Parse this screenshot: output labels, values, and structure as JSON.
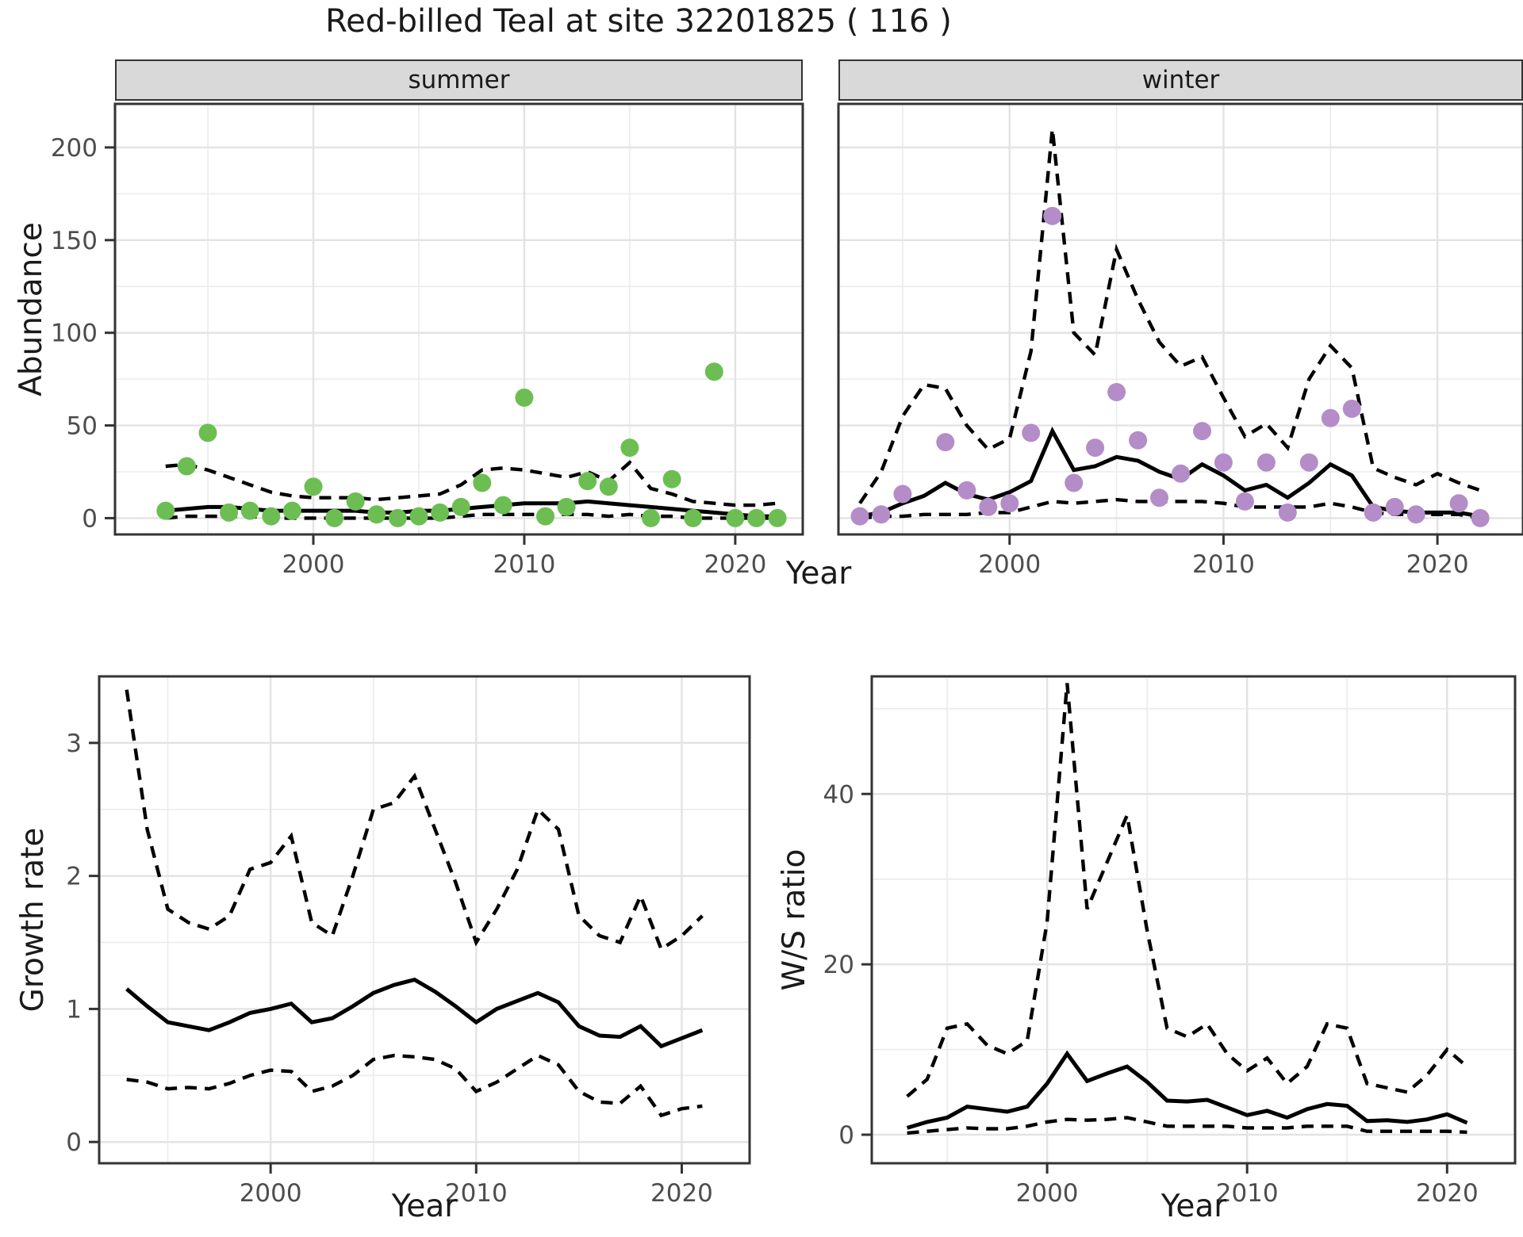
{
  "title": "Red-billed Teal at site 32201825 ( 116 )",
  "labels": {
    "abundance_axis": "Abundance",
    "year_axis": "Year",
    "growth_axis": "Growth rate",
    "ws_axis": "W/S ratio"
  },
  "colors": {
    "summer_point": "#6CBE53",
    "winter_point": "#B48CC8",
    "line": "#000000",
    "grid_major": "#e3e3e3",
    "grid_minor": "#ebebeb",
    "panel_border": "#333333",
    "tick_text": "#4d4d4d",
    "strip_bg": "#d9d9d9"
  },
  "chart_data": [
    {
      "id": "summer",
      "type": "line+scatter",
      "facet_label": "summer",
      "xlabel": "Year",
      "ylabel": "Abundance",
      "x": [
        1993,
        1994,
        1995,
        1996,
        1997,
        1998,
        1999,
        2000,
        2001,
        2002,
        2003,
        2004,
        2005,
        2006,
        2007,
        2008,
        2009,
        2010,
        2011,
        2012,
        2013,
        2014,
        2015,
        2016,
        2017,
        2018,
        2019,
        2020,
        2021,
        2022
      ],
      "points": [
        4,
        28,
        46,
        3,
        4,
        1,
        4,
        17,
        0,
        9,
        2,
        0,
        1,
        3,
        6,
        19,
        7,
        65,
        1,
        6,
        20,
        17,
        38,
        0,
        21,
        0,
        79,
        0,
        0,
        0
      ],
      "median": [
        4,
        5,
        6,
        6,
        5,
        4,
        4,
        4,
        4,
        4,
        3,
        3,
        4,
        4,
        5,
        6,
        7,
        8,
        8,
        8,
        9,
        8,
        7,
        6,
        5,
        4,
        3,
        2,
        1,
        1
      ],
      "upper": [
        28,
        29,
        26,
        22,
        18,
        14,
        12,
        11,
        11,
        11,
        10,
        11,
        12,
        13,
        18,
        26,
        27,
        26,
        24,
        22,
        25,
        20,
        30,
        16,
        13,
        9,
        8,
        7,
        7,
        8
      ],
      "lower": [
        0,
        1,
        1,
        1,
        1,
        0,
        0,
        0,
        0,
        0,
        0,
        0,
        0,
        0,
        1,
        2,
        2,
        2,
        2,
        2,
        2,
        1,
        2,
        1,
        1,
        0,
        0,
        0,
        0,
        0
      ],
      "xticks": [
        2000,
        2010,
        2020
      ],
      "xminor": [
        1995,
        2005,
        2015
      ],
      "yticks": [
        0,
        50,
        100,
        150,
        200
      ],
      "yminor": [
        25,
        75,
        125,
        175
      ],
      "xlim": [
        1990.6,
        2023.2
      ],
      "ylim": [
        -8.8,
        223.5
      ],
      "show_ylabels": true
    },
    {
      "id": "winter",
      "type": "line+scatter",
      "facet_label": "winter",
      "xlabel": "Year",
      "ylabel": "Abundance",
      "x": [
        1993,
        1994,
        1995,
        1996,
        1997,
        1998,
        1999,
        2000,
        2001,
        2002,
        2003,
        2004,
        2005,
        2006,
        2007,
        2008,
        2009,
        2010,
        2011,
        2012,
        2013,
        2014,
        2015,
        2016,
        2017,
        2018,
        2019,
        2020,
        2021,
        2022
      ],
      "points": [
        1,
        2,
        13,
        null,
        41,
        15,
        6,
        8,
        46,
        163,
        19,
        38,
        68,
        42,
        11,
        24,
        47,
        30,
        9,
        30,
        3,
        30,
        54,
        59,
        3,
        6,
        2,
        null,
        8,
        0
      ],
      "median": [
        1,
        3,
        8,
        12,
        19,
        13,
        10,
        14,
        20,
        47,
        26,
        28,
        33,
        31,
        25,
        21,
        29,
        23,
        15,
        18,
        11,
        19,
        29,
        23,
        6,
        4,
        3,
        3,
        3,
        1
      ],
      "upper": [
        8,
        25,
        55,
        72,
        70,
        50,
        37,
        43,
        90,
        210,
        100,
        88,
        145,
        118,
        95,
        82,
        87,
        65,
        44,
        51,
        38,
        75,
        93,
        81,
        27,
        22,
        18,
        24,
        19,
        15
      ],
      "lower": [
        0,
        1,
        1,
        2,
        2,
        2,
        3,
        3,
        6,
        9,
        8,
        9,
        10,
        9,
        9,
        9,
        9,
        8,
        6,
        6,
        6,
        6,
        8,
        6,
        3,
        2,
        2,
        2,
        2,
        0
      ],
      "xticks": [
        2000,
        2010,
        2020
      ],
      "xminor": [
        1995,
        2005,
        2015
      ],
      "yticks": [
        0,
        50,
        100,
        150,
        200
      ],
      "yminor": [
        25,
        75,
        125,
        175
      ],
      "xlim": [
        1992.0,
        2024.0
      ],
      "ylim": [
        -8.8,
        223.5
      ],
      "show_ylabels": false
    },
    {
      "id": "growth",
      "type": "line",
      "xlabel": "Year",
      "ylabel": "Growth rate",
      "x": [
        1993,
        1994,
        1995,
        1996,
        1997,
        1998,
        1999,
        2000,
        2001,
        2002,
        2003,
        2004,
        2005,
        2006,
        2007,
        2008,
        2009,
        2010,
        2011,
        2012,
        2013,
        2014,
        2015,
        2016,
        2017,
        2018,
        2019,
        2020,
        2021
      ],
      "median": [
        1.15,
        1.02,
        0.9,
        0.87,
        0.84,
        0.9,
        0.97,
        1.0,
        1.04,
        0.9,
        0.93,
        1.02,
        1.12,
        1.18,
        1.22,
        1.13,
        1.02,
        0.9,
        1.0,
        1.06,
        1.12,
        1.05,
        0.87,
        0.8,
        0.79,
        0.87,
        0.72,
        0.78,
        0.84
      ],
      "upper": [
        3.4,
        2.35,
        1.75,
        1.65,
        1.6,
        1.7,
        2.05,
        2.1,
        2.3,
        1.65,
        1.55,
        2.0,
        2.5,
        2.55,
        2.75,
        2.35,
        1.95,
        1.5,
        1.75,
        2.05,
        2.5,
        2.35,
        1.7,
        1.55,
        1.5,
        1.85,
        1.45,
        1.55,
        1.7
      ],
      "lower": [
        0.47,
        0.45,
        0.4,
        0.41,
        0.4,
        0.44,
        0.5,
        0.54,
        0.53,
        0.38,
        0.42,
        0.5,
        0.62,
        0.65,
        0.64,
        0.62,
        0.55,
        0.38,
        0.45,
        0.55,
        0.65,
        0.58,
        0.38,
        0.3,
        0.29,
        0.42,
        0.2,
        0.25,
        0.27
      ],
      "xticks": [
        2000,
        2010,
        2020
      ],
      "xminor": [
        1995,
        2005,
        2015
      ],
      "yticks": [
        0,
        1,
        2,
        3
      ],
      "yminor": [
        0.5,
        1.5,
        2.5,
        3.5
      ],
      "xlim": [
        1991.66,
        2023.3
      ],
      "ylim": [
        -0.16,
        3.5
      ],
      "show_ylabels": true
    },
    {
      "id": "ws",
      "type": "line",
      "xlabel": "Year",
      "ylabel": "W/S ratio",
      "x": [
        1993,
        1994,
        1995,
        1996,
        1997,
        1998,
        1999,
        2000,
        2001,
        2002,
        2003,
        2004,
        2005,
        2006,
        2007,
        2008,
        2009,
        2010,
        2011,
        2012,
        2013,
        2014,
        2015,
        2016,
        2017,
        2018,
        2019,
        2020,
        2021
      ],
      "median": [
        0.8,
        1.5,
        2.0,
        3.3,
        3.0,
        2.7,
        3.3,
        6.0,
        9.5,
        6.3,
        7.2,
        8.0,
        6.2,
        4.0,
        3.9,
        4.1,
        3.2,
        2.3,
        2.8,
        2.0,
        3.0,
        3.6,
        3.4,
        1.6,
        1.7,
        1.5,
        1.8,
        2.4,
        1.4
      ],
      "upper": [
        4.5,
        6.5,
        12.5,
        13.0,
        10.5,
        9.5,
        11.0,
        25.0,
        53.0,
        26.5,
        32.0,
        37.5,
        24.0,
        12.5,
        11.5,
        13.0,
        9.5,
        7.5,
        9.0,
        6.0,
        8.0,
        13.0,
        12.5,
        6.0,
        5.5,
        5.0,
        7.0,
        10.0,
        8.0
      ],
      "lower": [
        0.2,
        0.4,
        0.6,
        0.8,
        0.7,
        0.7,
        1.0,
        1.5,
        1.8,
        1.7,
        1.8,
        2.0,
        1.5,
        1.0,
        1.0,
        1.0,
        1.0,
        0.8,
        0.8,
        0.8,
        1.0,
        1.0,
        1.0,
        0.4,
        0.4,
        0.4,
        0.4,
        0.4,
        0.3
      ],
      "xticks": [
        2000,
        2010,
        2020
      ],
      "xminor": [
        1995,
        2005,
        2015
      ],
      "yticks": [
        0,
        20,
        40
      ],
      "yminor": [
        10,
        30,
        50
      ],
      "xlim": [
        1991.23,
        2023.4
      ],
      "ylim": [
        -3.35,
        53.8
      ],
      "show_ylabels": true
    }
  ]
}
